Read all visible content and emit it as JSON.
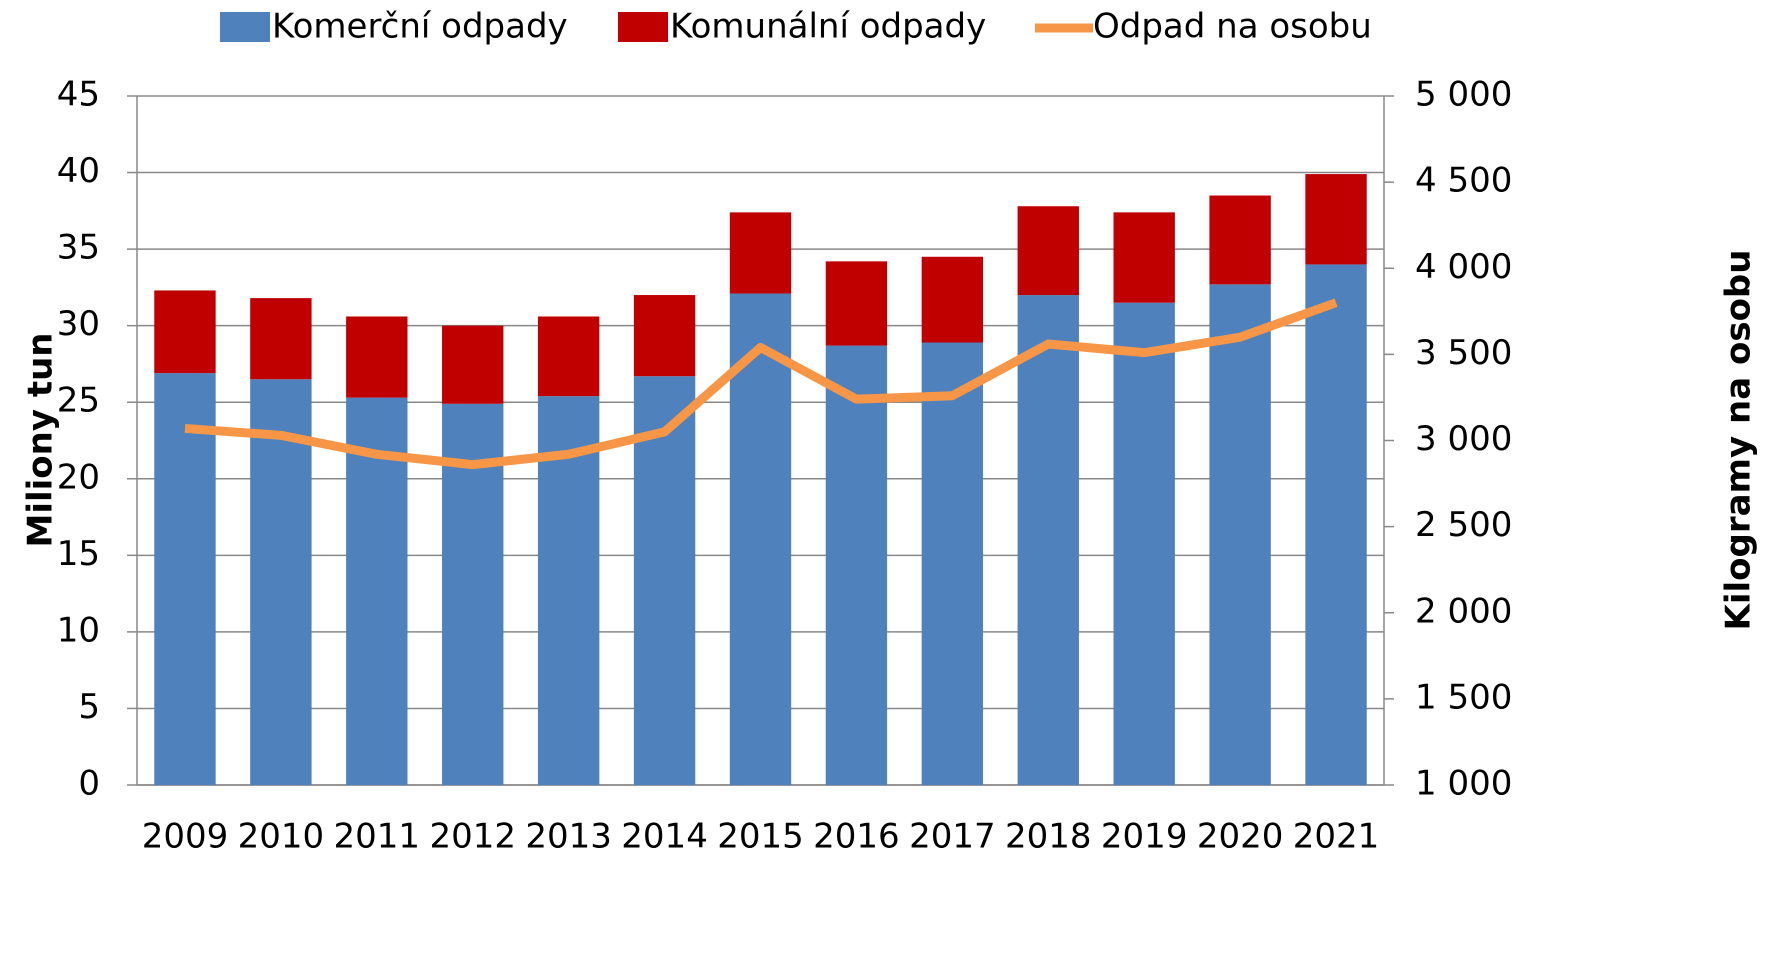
{
  "chart_data": {
    "type": "bar",
    "stacked": true,
    "categories": [
      "2009",
      "2010",
      "2011",
      "2012",
      "2013",
      "2014",
      "2015",
      "2016",
      "2017",
      "2018",
      "2019",
      "2020",
      "2021"
    ],
    "series": [
      {
        "name": "Komerční odpady",
        "type": "bar",
        "color": "#4f81bd",
        "values": [
          26.9,
          26.5,
          25.3,
          24.9,
          25.4,
          26.7,
          32.1,
          28.7,
          28.9,
          32.0,
          31.5,
          32.7,
          34.0
        ]
      },
      {
        "name": "Komunální odpady",
        "type": "bar",
        "color": "#c00000",
        "values": [
          5.4,
          5.3,
          5.3,
          5.1,
          5.2,
          5.3,
          5.3,
          5.5,
          5.6,
          5.8,
          5.9,
          5.8,
          5.9
        ]
      },
      {
        "name": "Odpad na osobu",
        "type": "line",
        "axis": "y2",
        "color": "#f79646",
        "values": [
          3070,
          3030,
          2920,
          2860,
          2920,
          3050,
          3540,
          3240,
          3260,
          3560,
          3510,
          3600,
          3800
        ]
      }
    ],
    "ylabel": "Miliony tun",
    "y2label": "Kilogramy na osobu",
    "ylim": [
      0,
      45
    ],
    "yticks": [
      0,
      5,
      10,
      15,
      20,
      25,
      30,
      35,
      40,
      45
    ],
    "y2lim": [
      1000,
      5000
    ],
    "y2ticks": [
      {
        "value": 1000,
        "label": "1 000"
      },
      {
        "value": 1500,
        "label": "1 500"
      },
      {
        "value": 2000,
        "label": "2 000"
      },
      {
        "value": 2500,
        "label": "2 500"
      },
      {
        "value": 3000,
        "label": "3 000"
      },
      {
        "value": 3500,
        "label": "3 500"
      },
      {
        "value": 4000,
        "label": "4 000"
      },
      {
        "value": 4500,
        "label": "4 500"
      },
      {
        "value": 5000,
        "label": "5 000"
      }
    ],
    "grid": true,
    "legend": "top"
  }
}
